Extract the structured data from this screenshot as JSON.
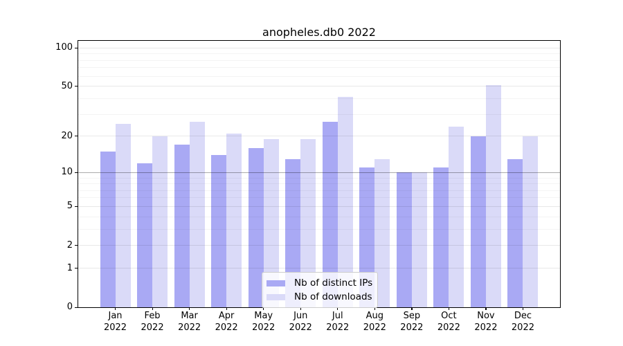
{
  "title": "anopheles.db0 2022",
  "chart_data": {
    "type": "bar",
    "title": "anopheles.db0 2022",
    "categories": [
      "Jan",
      "Feb",
      "Mar",
      "Apr",
      "May",
      "Jun",
      "Jul",
      "Aug",
      "Sep",
      "Oct",
      "Nov",
      "Dec"
    ],
    "year": "2022",
    "series": [
      {
        "name": "Nb of distinct IPs",
        "slug": "distinct-ips",
        "color": "#a9a9f4",
        "values": [
          15,
          12,
          17,
          14,
          16,
          13,
          26,
          11,
          10,
          11,
          20,
          13
        ]
      },
      {
        "name": "Nb of downloads",
        "slug": "downloads",
        "color": "#dadaf8",
        "values": [
          25,
          20,
          26,
          21,
          19,
          19,
          41,
          13,
          10,
          24,
          51,
          20
        ]
      }
    ],
    "yscale": "log1p",
    "ylim": [
      0,
      114
    ],
    "y_major_ticks": [
      0,
      1,
      2,
      5,
      10,
      20,
      50,
      100
    ],
    "y_minor_ticks": [
      3,
      4,
      6,
      7,
      8,
      9,
      30,
      40,
      60,
      70,
      80,
      90
    ],
    "emphasized_gridline": 10,
    "grid": "on",
    "legend_position": "lower center"
  },
  "colors": {
    "bar_distinct_ips": "#a9a9f4",
    "bar_downloads": "#dadaf8",
    "grid_minor": "rgba(0,0,0,0.045)",
    "grid_major": "rgba(0,0,0,0.09)",
    "grid_emphasized": "rgba(0,0,0,0.33)",
    "axis": "#000000",
    "legend_border": "#cccccc"
  }
}
